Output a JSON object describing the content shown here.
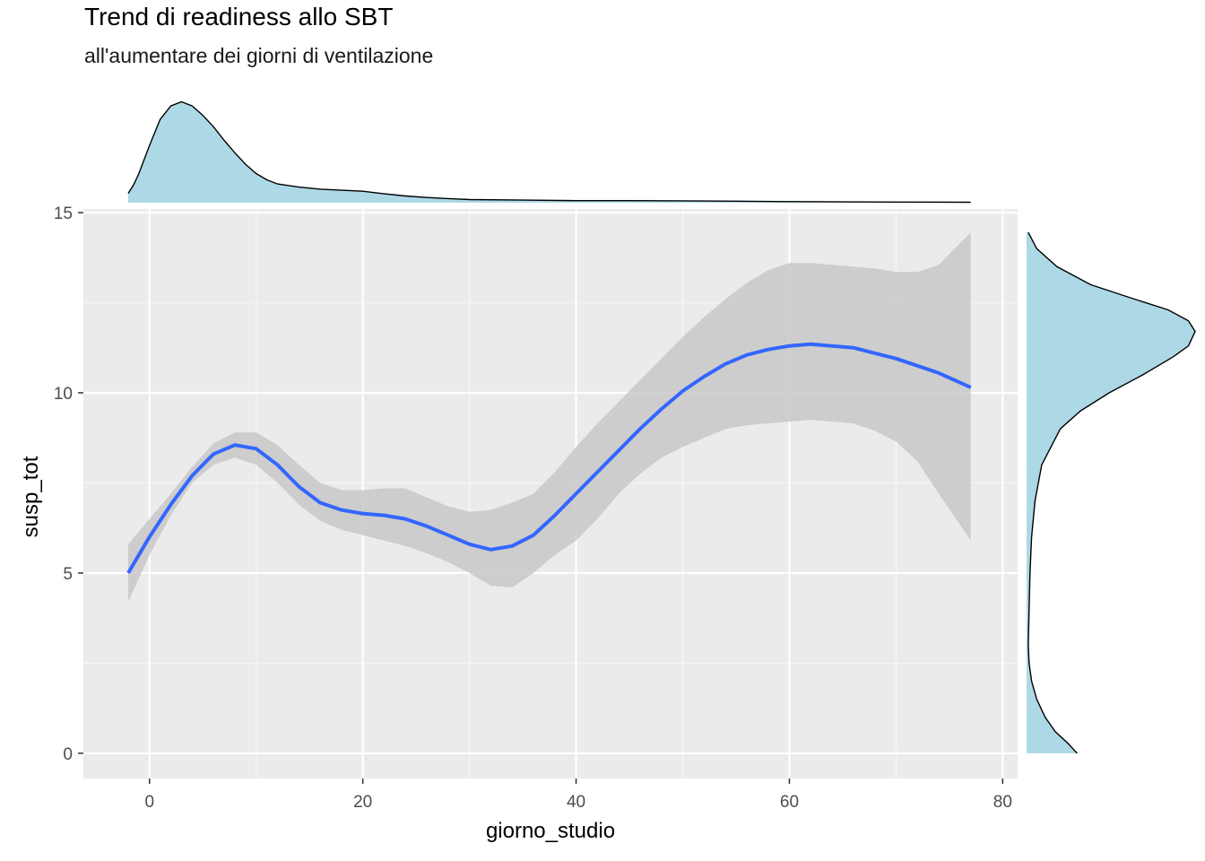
{
  "chart_data": {
    "type": "line",
    "title": "Trend di readiness allo SBT",
    "subtitle": "all'aumentare dei giorni di ventilazione",
    "xlabel": "giorno_studio",
    "ylabel": "susp_tot",
    "xlim": [
      -6.2,
      81.4
    ],
    "ylim": [
      -0.7,
      15.1
    ],
    "x_ticks": [
      0,
      20,
      40,
      60,
      80
    ],
    "y_ticks": [
      0,
      5,
      10,
      15
    ],
    "grid": true,
    "background": "#ebebeb",
    "smooth": {
      "x": [
        -2,
        0,
        2,
        4,
        6,
        8,
        10,
        12,
        14,
        16,
        18,
        20,
        22,
        24,
        26,
        28,
        30,
        32,
        34,
        36,
        38,
        40,
        42,
        44,
        46,
        48,
        50,
        52,
        54,
        56,
        58,
        60,
        62,
        64,
        66,
        68,
        70,
        72,
        74,
        77
      ],
      "y": [
        5.0,
        6.0,
        6.9,
        7.7,
        8.3,
        8.55,
        8.45,
        8.0,
        7.4,
        6.95,
        6.75,
        6.65,
        6.6,
        6.5,
        6.3,
        6.05,
        5.8,
        5.65,
        5.75,
        6.05,
        6.6,
        7.2,
        7.8,
        8.4,
        9.0,
        9.55,
        10.05,
        10.45,
        10.8,
        11.05,
        11.2,
        11.3,
        11.35,
        11.3,
        11.25,
        11.1,
        10.95,
        10.75,
        10.55,
        10.15
      ],
      "lower": [
        4.2,
        5.5,
        6.6,
        7.5,
        8.0,
        8.2,
        8.0,
        7.5,
        6.9,
        6.45,
        6.2,
        6.05,
        5.9,
        5.75,
        5.55,
        5.3,
        5.0,
        4.65,
        4.6,
        5.0,
        5.5,
        5.9,
        6.5,
        7.2,
        7.75,
        8.2,
        8.5,
        8.75,
        9.0,
        9.1,
        9.15,
        9.2,
        9.25,
        9.2,
        9.15,
        8.95,
        8.65,
        8.1,
        7.2,
        5.9
      ],
      "upper": [
        5.8,
        6.5,
        7.2,
        7.95,
        8.6,
        8.9,
        8.9,
        8.55,
        8.0,
        7.5,
        7.3,
        7.3,
        7.35,
        7.35,
        7.1,
        6.85,
        6.7,
        6.75,
        6.95,
        7.2,
        7.8,
        8.5,
        9.15,
        9.75,
        10.35,
        10.95,
        11.55,
        12.1,
        12.6,
        13.05,
        13.4,
        13.6,
        13.6,
        13.55,
        13.5,
        13.45,
        13.35,
        13.35,
        13.55,
        14.45
      ]
    },
    "colors": {
      "line": "#3366ff",
      "band": "#c8c8c8",
      "marginal_fill": "#add8e6"
    },
    "marginal_x_density": {
      "x": [
        -2,
        -1.5,
        -1,
        0,
        1,
        2,
        3,
        4,
        5,
        6,
        7,
        8,
        9,
        10,
        11,
        12,
        14,
        16,
        18,
        20,
        22,
        24,
        26,
        28,
        30,
        35,
        40,
        45,
        50,
        55,
        60,
        65,
        70,
        77
      ],
      "density": [
        0.09,
        0.17,
        0.28,
        0.55,
        0.8,
        0.93,
        0.97,
        0.93,
        0.84,
        0.73,
        0.6,
        0.48,
        0.37,
        0.28,
        0.22,
        0.18,
        0.15,
        0.13,
        0.12,
        0.11,
        0.085,
        0.065,
        0.05,
        0.04,
        0.03,
        0.025,
        0.02,
        0.02,
        0.018,
        0.015,
        0.01,
        0.008,
        0.006,
        0.004
      ]
    },
    "marginal_y_density": {
      "y": [
        0,
        0.3,
        0.6,
        1,
        1.5,
        2,
        2.5,
        3,
        4,
        5,
        6,
        7,
        8,
        9,
        9.5,
        10,
        10.5,
        11,
        11.3,
        11.7,
        12,
        12.3,
        12.6,
        13,
        13.5,
        14,
        14.45
      ],
      "density": [
        0.3,
        0.24,
        0.17,
        0.11,
        0.06,
        0.03,
        0.015,
        0.01,
        0.015,
        0.02,
        0.03,
        0.05,
        0.09,
        0.2,
        0.32,
        0.49,
        0.69,
        0.87,
        0.96,
        1.0,
        0.96,
        0.84,
        0.64,
        0.38,
        0.18,
        0.06,
        0.01
      ]
    }
  }
}
